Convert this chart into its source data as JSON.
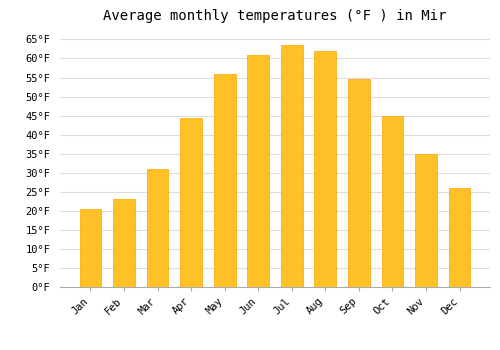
{
  "months": [
    "Jan",
    "Feb",
    "Mar",
    "Apr",
    "May",
    "Jun",
    "Jul",
    "Aug",
    "Sep",
    "Oct",
    "Nov",
    "Dec"
  ],
  "values": [
    20.5,
    23.0,
    31.0,
    44.5,
    56.0,
    61.0,
    63.5,
    62.0,
    54.5,
    45.0,
    35.0,
    26.0
  ],
  "bar_color": "#FFC125",
  "bar_edge_color": "#FFA500",
  "title": "Average monthly temperatures (°F ) in Mir",
  "ylim": [
    0,
    68
  ],
  "yticks": [
    0,
    5,
    10,
    15,
    20,
    25,
    30,
    35,
    40,
    45,
    50,
    55,
    60,
    65
  ],
  "background_color": "#ffffff",
  "grid_color": "#dddddd",
  "title_fontsize": 10,
  "tick_fontsize": 7.5,
  "font_family": "monospace"
}
